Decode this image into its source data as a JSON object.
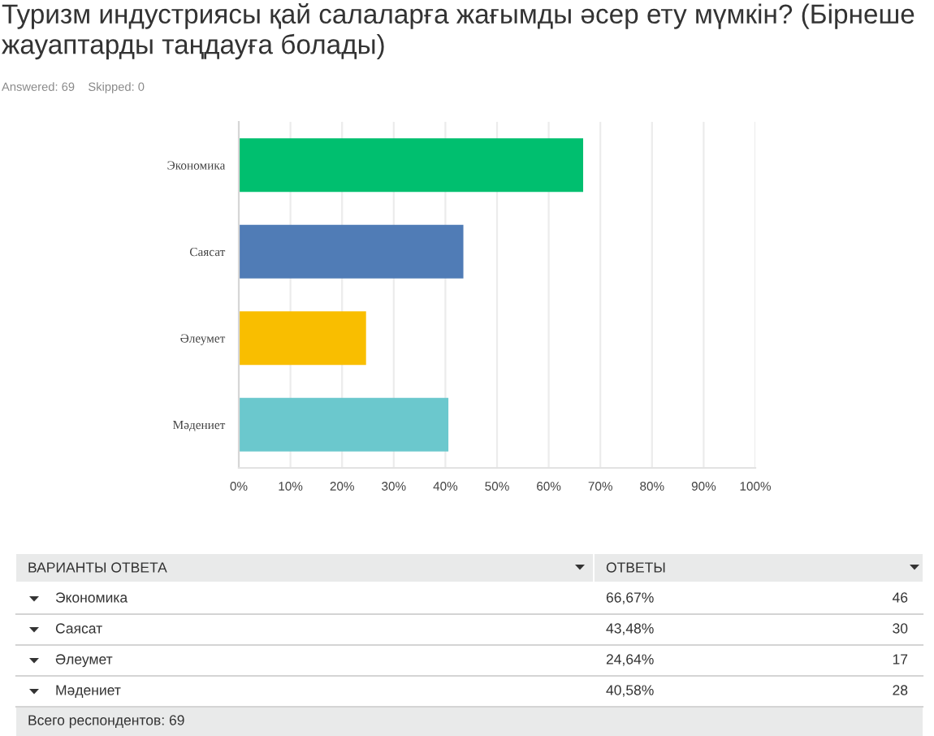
{
  "chart_data": {
    "type": "bar",
    "orientation": "horizontal",
    "title": "Туризм индустриясы қай салаларға жағымды әсер ету мүмкін? (Бірнеше жауаптарды таңдауға болады)",
    "subtitle": "Answered: 69    Skipped: 0",
    "categories": [
      "Экономика",
      "Саясат",
      "Әлеумет",
      "Мәдениет"
    ],
    "values": [
      66.67,
      43.48,
      24.64,
      40.58
    ],
    "colors": [
      "#00bf6f",
      "#507cb6",
      "#f9be00",
      "#6bc8cd"
    ],
    "xlim": [
      0,
      100
    ],
    "xticks": [
      {
        "value": 0,
        "label": "0%"
      },
      {
        "value": 10,
        "label": "10%"
      },
      {
        "value": 20,
        "label": "20%"
      },
      {
        "value": 30,
        "label": "30%"
      },
      {
        "value": 40,
        "label": "40%"
      },
      {
        "value": 50,
        "label": "50%"
      },
      {
        "value": 60,
        "label": "60%"
      },
      {
        "value": 70,
        "label": "70%"
      },
      {
        "value": 80,
        "label": "80%"
      },
      {
        "value": 90,
        "label": "90%"
      },
      {
        "value": 100,
        "label": "100%"
      }
    ],
    "grid": "x",
    "annotations": [
      "ВАРИАНТЫ ОТВЕТА",
      "ОТВЕТЫ",
      "66,67%",
      "46",
      "43,48%",
      "30",
      "24,64%",
      "17",
      "40,58%",
      "28",
      "Всего респондентов: 69"
    ]
  }
}
